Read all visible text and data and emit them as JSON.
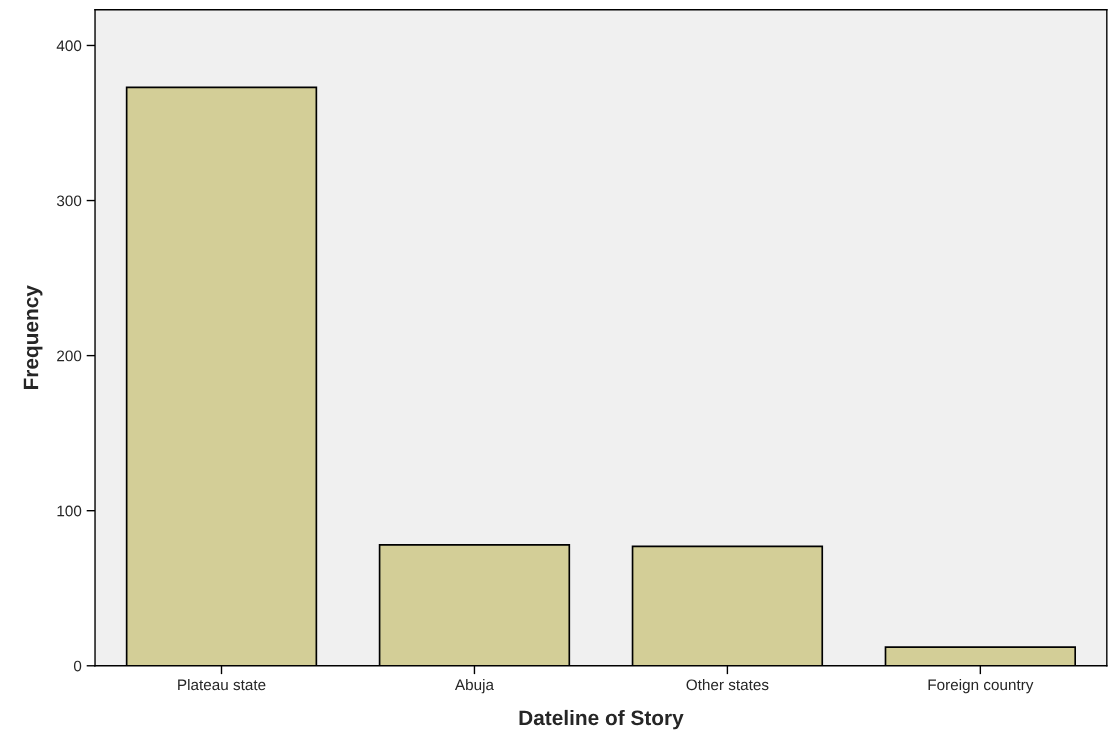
{
  "chart_data": {
    "type": "bar",
    "xlabel": "Dateline of Story",
    "ylabel": "Frequency",
    "categories": [
      "Plateau state",
      "Abuja",
      "Other states",
      "Foreign country"
    ],
    "values": [
      373,
      78,
      77,
      12
    ],
    "color": "#d3ce97",
    "ylim": [
      0,
      423
    ],
    "yticks": [
      0,
      100,
      200,
      300,
      400
    ],
    "grid": false,
    "legend": false
  }
}
